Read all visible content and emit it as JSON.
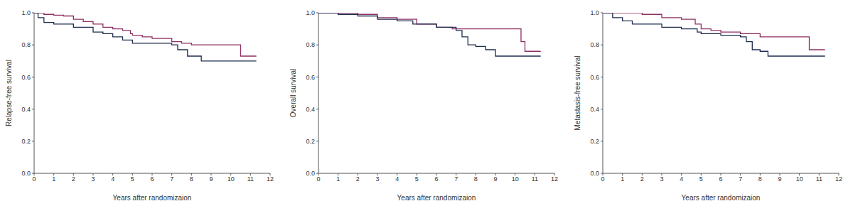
{
  "chart_data": [
    {
      "type": "line",
      "x_label": "Years after randomizaion",
      "y_label": "Relapse-free survival",
      "xlim": [
        0,
        12
      ],
      "xticks": [
        0,
        1,
        2,
        3,
        4,
        5,
        6,
        7,
        8,
        9,
        10,
        11,
        12
      ],
      "ylim": [
        0,
        1
      ],
      "yticks": [
        {
          "value": 0,
          "label": "0.0"
        },
        0.2,
        0.4,
        0.6,
        0.8,
        {
          "value": 1,
          "label": "1.0"
        }
      ],
      "line_style": "step",
      "series": [
        {
          "color": "#8e2f62",
          "x": [
            0,
            0.5,
            1,
            1.5,
            2,
            2.5,
            3,
            3.5,
            4,
            4.5,
            4.9,
            5,
            5.5,
            6,
            7,
            7.5,
            8,
            10.5,
            11.3
          ],
          "values": [
            1,
            0.99,
            0.985,
            0.98,
            0.96,
            0.945,
            0.93,
            0.91,
            0.9,
            0.89,
            0.87,
            0.86,
            0.85,
            0.84,
            0.82,
            0.81,
            0.8,
            0.73,
            0.73
          ]
        },
        {
          "color": "#1f2d4f",
          "x": [
            0,
            0.2,
            0.5,
            1,
            2,
            3,
            3.5,
            4,
            4.5,
            5,
            7,
            7.3,
            7.8,
            8.5,
            11.3
          ],
          "values": [
            1,
            0.97,
            0.94,
            0.93,
            0.91,
            0.88,
            0.87,
            0.85,
            0.83,
            0.81,
            0.8,
            0.77,
            0.73,
            0.7,
            0.7
          ]
        }
      ]
    },
    {
      "type": "line",
      "x_label": "Years after randomizaion",
      "y_label": "Overall survival",
      "xlim": [
        0,
        12
      ],
      "xticks": [
        0,
        1,
        2,
        3,
        4,
        5,
        6,
        7,
        8,
        9,
        10,
        11,
        12
      ],
      "ylim": [
        0,
        1
      ],
      "yticks": [
        {
          "value": 0,
          "label": "0.0"
        },
        0.2,
        0.4,
        0.6,
        0.8,
        {
          "value": 1,
          "label": "1.0"
        }
      ],
      "line_style": "step",
      "series": [
        {
          "color": "#8e2f62",
          "x": [
            0,
            1,
            2,
            3,
            4,
            5,
            6,
            6.8,
            10.2,
            10.3,
            10.5,
            11.3
          ],
          "values": [
            1,
            1,
            0.99,
            0.97,
            0.96,
            0.93,
            0.91,
            0.9,
            0.9,
            0.82,
            0.76,
            0.76
          ]
        },
        {
          "color": "#1f2d4f",
          "x": [
            0,
            1,
            2,
            3,
            4,
            4.8,
            6,
            7,
            7.3,
            7.6,
            8,
            8.5,
            9,
            11.3
          ],
          "values": [
            1,
            0.99,
            0.98,
            0.96,
            0.95,
            0.93,
            0.91,
            0.89,
            0.85,
            0.8,
            0.79,
            0.77,
            0.73,
            0.73
          ]
        }
      ]
    },
    {
      "type": "line",
      "x_label": "Years after randomizaion",
      "y_label": "Metastasis-free survival",
      "xlim": [
        0,
        12
      ],
      "xticks": [
        0,
        1,
        2,
        3,
        4,
        5,
        6,
        7,
        8,
        9,
        10,
        11,
        12
      ],
      "ylim": [
        0,
        1
      ],
      "yticks": [
        {
          "value": 0,
          "label": "0.0"
        },
        0.2,
        0.4,
        0.6,
        0.8,
        {
          "value": 1,
          "label": "1.0"
        }
      ],
      "line_style": "step",
      "series": [
        {
          "color": "#8e2f62",
          "x": [
            0,
            1,
            2,
            3,
            4,
            4.7,
            5,
            5.5,
            6,
            7,
            7.5,
            8,
            10.5,
            11.3
          ],
          "values": [
            1,
            1,
            0.99,
            0.97,
            0.96,
            0.93,
            0.9,
            0.89,
            0.88,
            0.87,
            0.87,
            0.85,
            0.77,
            0.77
          ]
        },
        {
          "color": "#1f2d4f",
          "x": [
            0,
            0.5,
            1,
            1.5,
            2,
            3,
            4,
            4.8,
            5,
            6,
            7,
            7.3,
            7.6,
            8,
            8.4,
            11.3
          ],
          "values": [
            1,
            0.97,
            0.95,
            0.93,
            0.93,
            0.91,
            0.9,
            0.88,
            0.87,
            0.86,
            0.85,
            0.82,
            0.77,
            0.76,
            0.73,
            0.73
          ]
        }
      ]
    }
  ]
}
